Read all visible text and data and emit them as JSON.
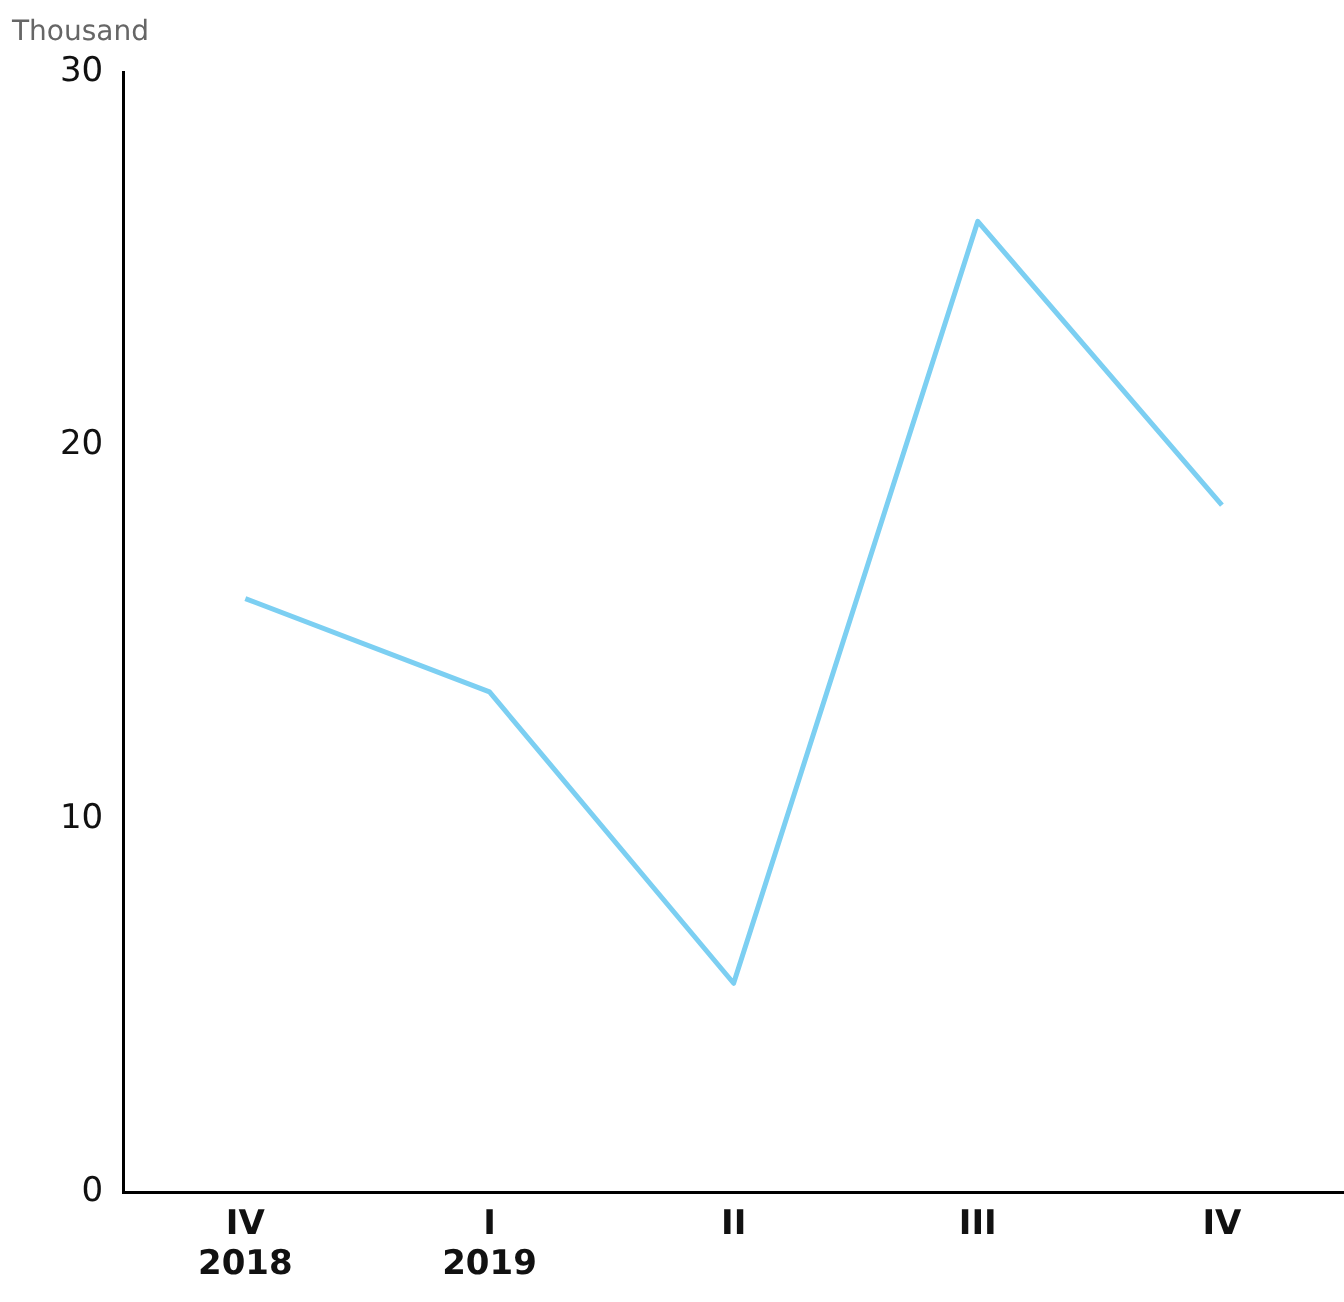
{
  "chart_data": {
    "type": "line",
    "ylabel": "Thousand",
    "categories": [
      "IV\n2018",
      "I\n2019",
      "II",
      "III",
      "IV"
    ],
    "series": [
      {
        "color": "#7ccff2",
        "values": [
          15.9,
          13.4,
          5.6,
          26.0,
          18.4
        ]
      }
    ],
    "ylim": [
      0,
      30
    ],
    "yticks": [
      0,
      10,
      20,
      30
    ],
    "grid": false,
    "legend": false,
    "marker": "none",
    "line_style": "solid"
  }
}
